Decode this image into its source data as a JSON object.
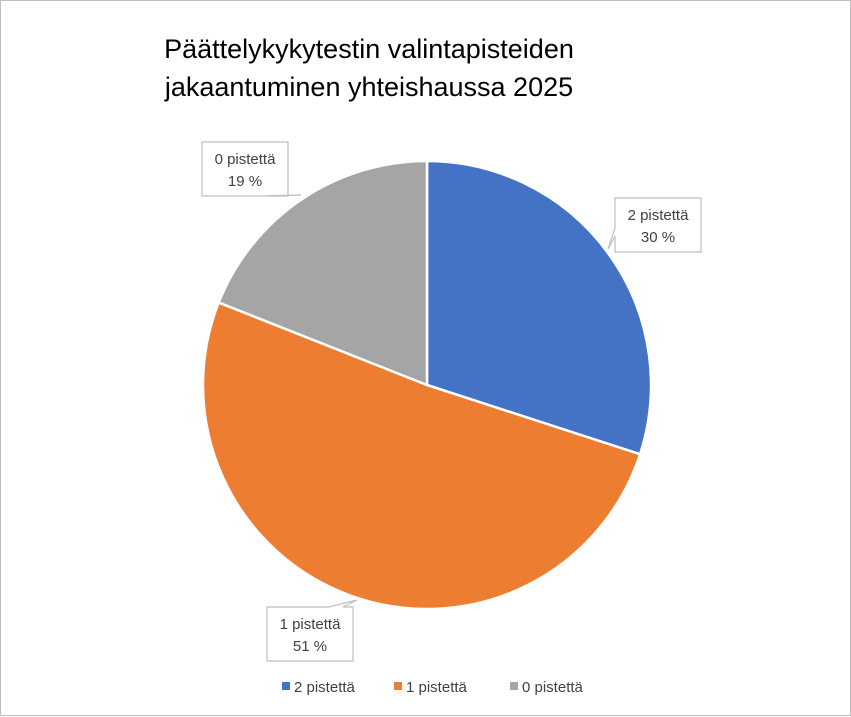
{
  "chart_data": {
    "type": "pie",
    "title_lines": [
      "Päättelykykytestin valintapisteiden",
      "jakaantuminen yhteishaussa 2025"
    ],
    "categories": [
      "2 pistettä",
      "1 pistettä",
      "0 pistettä"
    ],
    "values": [
      30,
      51,
      19
    ],
    "value_labels": [
      "30 %",
      "51 %",
      "19 %"
    ],
    "unit": "%",
    "colors": [
      "#4472c4",
      "#ed7d31",
      "#a5a5a5"
    ],
    "data_labels": true,
    "legend": "bottom"
  }
}
